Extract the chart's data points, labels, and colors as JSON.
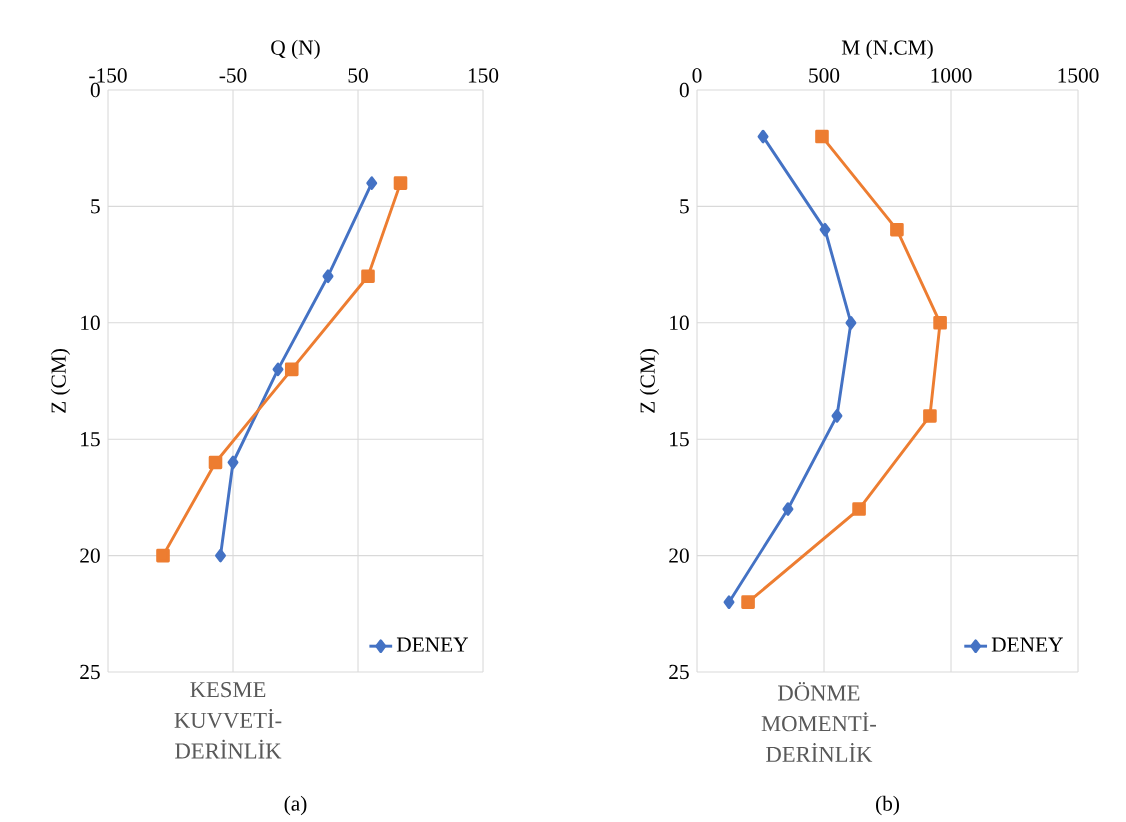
{
  "chart_data": [
    {
      "type": "line",
      "title": "KESME KUVVETİ-DERİNLİK",
      "xlabel": "Q (N)",
      "ylabel": "Z (CM)",
      "annotations": [
        "(a)"
      ],
      "xlim": [
        -150,
        150
      ],
      "xticks": [
        -150,
        -50,
        50,
        150
      ],
      "ylim": [
        25,
        0
      ],
      "yticks": [
        0,
        5,
        10,
        15,
        20,
        25
      ],
      "grid": true,
      "legend": "bottom right",
      "series": [
        {
          "name": "DENEY",
          "color": "#4472c4",
          "marker": "diamond",
          "x": [
            61,
            26,
            -14,
            -50,
            -60
          ],
          "values": [
            4,
            8,
            12,
            16,
            20
          ]
        },
        {
          "color": "#ed7d31",
          "marker": "square",
          "x": [
            84,
            58,
            -3,
            -64,
            -106
          ],
          "values": [
            4,
            8,
            12,
            16,
            20
          ]
        }
      ]
    },
    {
      "type": "line",
      "title": "DÖNME MOMENTİ-DERİNLİK",
      "xlabel": "M (N.CM)",
      "ylabel": "Z (CM)",
      "annotations": [
        "(b)"
      ],
      "xlim": [
        0,
        1500
      ],
      "xticks": [
        0,
        500,
        1000,
        1500
      ],
      "ylim": [
        25,
        0
      ],
      "yticks": [
        0,
        5,
        10,
        15,
        20,
        25
      ],
      "grid": true,
      "legend": "bottom right",
      "series": [
        {
          "name": "DENEY",
          "color": "#4472c4",
          "marker": "diamond",
          "x": [
            260,
            504,
            606,
            551,
            358,
            126
          ],
          "values": [
            2,
            6,
            10,
            14,
            18,
            22
          ]
        },
        {
          "color": "#ed7d31",
          "marker": "square",
          "x": [
            492,
            787,
            957,
            917,
            638,
            201
          ],
          "values": [
            2,
            6,
            10,
            14,
            18,
            22
          ]
        }
      ]
    }
  ]
}
